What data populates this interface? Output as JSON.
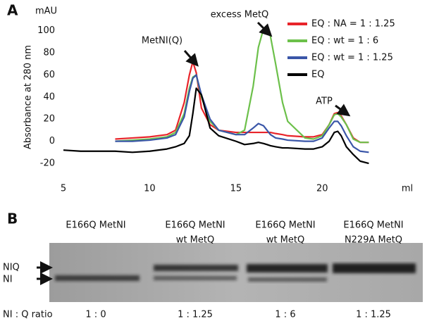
{
  "chart_data": {
    "type": "line",
    "panel": "A",
    "y_unit": "mAU",
    "x_unit": "ml",
    "y_label": "Absorbance at 280 nm",
    "xlim": [
      5,
      23.5
    ],
    "ylim": [
      -27,
      110
    ],
    "xticks": [
      5,
      10,
      15,
      20
    ],
    "yticks": [
      -20,
      0,
      20,
      40,
      60,
      80,
      100
    ],
    "grid": false,
    "legend": "upper right",
    "annotations": [
      "MetNI(Q)",
      "excess MetQ",
      "ATP"
    ],
    "x": [
      5,
      6,
      7,
      8,
      9,
      10,
      11,
      11.5,
      12,
      12.3,
      12.5,
      12.7,
      13,
      13.5,
      14,
      15,
      15.5,
      16,
      16.3,
      16.6,
      16.8,
      17,
      17.3,
      17.7,
      18,
      19,
      19.5,
      20,
      20.4,
      20.7,
      20.9,
      21.1,
      21.4,
      21.8,
      22.2,
      22.7
    ],
    "series": [
      {
        "name": "EQ : NA = 1 : 1.25",
        "color": "#e8242a",
        "values": [
          null,
          null,
          null,
          2,
          3,
          4,
          6,
          10,
          35,
          60,
          72,
          62,
          30,
          15,
          10,
          8,
          8,
          8,
          8,
          8,
          8,
          8,
          7,
          6,
          5,
          4,
          4,
          6,
          15,
          25,
          26,
          23,
          15,
          3,
          -1,
          -1
        ]
      },
      {
        "name": "EQ : wt = 1 : 6",
        "color": "#6cc04a",
        "values": [
          null,
          null,
          null,
          0,
          1,
          2,
          4,
          8,
          25,
          48,
          58,
          60,
          40,
          18,
          10,
          6,
          10,
          50,
          85,
          102,
          103,
          95,
          70,
          35,
          18,
          3,
          2,
          5,
          15,
          24,
          25,
          22,
          15,
          2,
          -1,
          -1
        ]
      },
      {
        "name": "EQ : wt = 1 : 1.25",
        "color": "#3a56a8",
        "values": [
          null,
          null,
          null,
          0,
          0,
          1,
          3,
          6,
          22,
          45,
          57,
          60,
          42,
          20,
          10,
          6,
          6,
          12,
          16,
          14,
          10,
          6,
          3,
          2,
          1,
          0,
          0,
          3,
          12,
          18,
          18,
          14,
          5,
          -5,
          -9,
          -10
        ]
      },
      {
        "name": "EQ",
        "color": "#000000",
        "values": [
          -8,
          -9,
          -9,
          -9,
          -10,
          -9,
          -7,
          -5,
          -2,
          5,
          25,
          48,
          42,
          12,
          5,
          0,
          -3,
          -2,
          -1,
          -2,
          -3,
          -4,
          -5,
          -6,
          -6,
          -7,
          -7,
          -5,
          0,
          8,
          9,
          5,
          -5,
          -12,
          -18,
          -20
        ]
      }
    ]
  },
  "gel": {
    "panel": "B",
    "lanes": [
      [
        "E166Q MetNI"
      ],
      [
        "E166Q MetNI",
        "wt MetQ"
      ],
      [
        "E166Q MetNI",
        "wt MetQ"
      ],
      [
        "E166Q MetNI",
        "N229A MetQ"
      ]
    ],
    "bands": [
      "NIQ",
      "NI"
    ],
    "ratio_label": "NI : Q ratio",
    "ratios": [
      "1 : 0",
      "1 : 1.25",
      "1 : 6",
      "1 : 1.25"
    ]
  }
}
